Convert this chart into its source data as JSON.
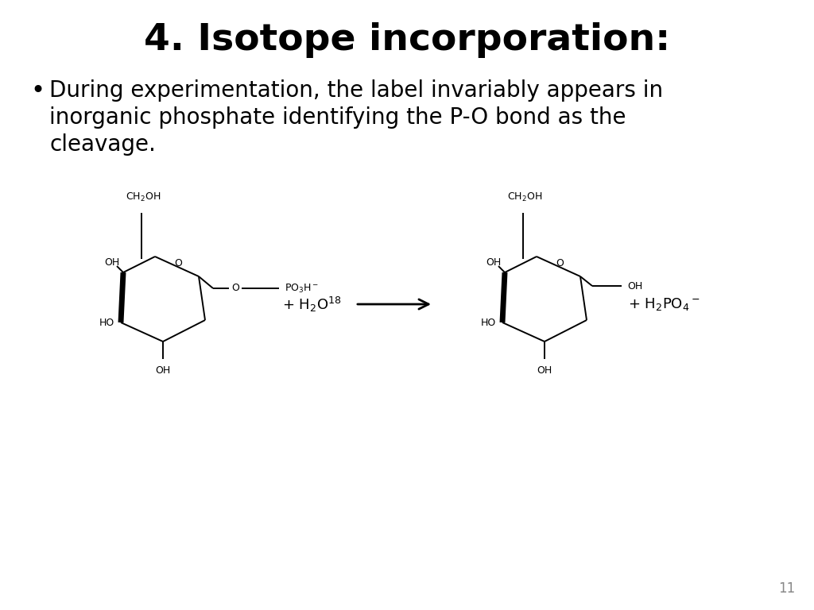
{
  "title": "4. Isotope incorporation:",
  "title_fontsize": 34,
  "title_fontweight": "bold",
  "bullet_text_line1": "During experimentation, the label invariably appears in",
  "bullet_text_line2": "inorganic phosphate identifying the P-O bond as the",
  "bullet_text_line3": "cleavage.",
  "bullet_fontsize": 20,
  "page_number": "11",
  "background_color": "#ffffff",
  "text_color": "#000000",
  "fig_width": 10.24,
  "fig_height": 7.68,
  "dpi": 100,
  "chem_fontsize": 9,
  "lw": 1.4
}
